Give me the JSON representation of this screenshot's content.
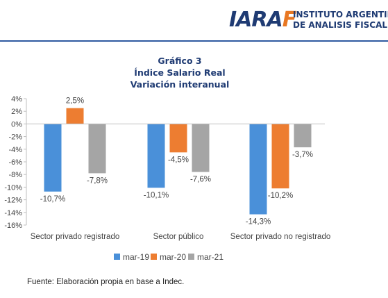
{
  "header": {
    "logo_mark": "IARAF",
    "org_line1": "INSTITUTO ARGENTINO",
    "org_line2": "DE ANALISIS FISCAL",
    "logo_color": "#1f3b73",
    "accent_color": "#e87722",
    "line_color": "#2e5aa0"
  },
  "chart_data": {
    "type": "bar",
    "title": [
      "Gráfico 3",
      "Índice Salario Real",
      "Variación interanual"
    ],
    "categories": [
      "Sector privado registrado",
      "Sector público",
      "Sector privado no registrado"
    ],
    "series": [
      {
        "name": "mar-19",
        "color": "#4a90d9",
        "values": [
          -10.7,
          -10.1,
          -14.3
        ],
        "labels": [
          "-10,7%",
          "-10,1%",
          "-14,3%"
        ]
      },
      {
        "name": "mar-20",
        "color": "#ed7d31",
        "values": [
          2.5,
          -4.5,
          -10.2
        ],
        "labels": [
          "2,5%",
          "-4,5%",
          "-10,2%"
        ]
      },
      {
        "name": "mar-21",
        "color": "#a5a5a5",
        "values": [
          -7.8,
          -7.6,
          -3.7
        ],
        "labels": [
          "-7,8%",
          "-7,6%",
          "-3,7%"
        ]
      }
    ],
    "ylim": [
      -16,
      4
    ],
    "yticks": [
      4,
      2,
      0,
      -2,
      -4,
      -6,
      -8,
      -10,
      -12,
      -14,
      -16
    ],
    "ytick_labels": [
      "4%",
      "2%",
      "0%",
      "-2%",
      "-4%",
      "-6%",
      "-8%",
      "-10%",
      "-12%",
      "-14%",
      "-16%"
    ],
    "grid": false,
    "legend_position": "bottom"
  },
  "source_text": "Fuente: Elaboración propia en base a Indec."
}
